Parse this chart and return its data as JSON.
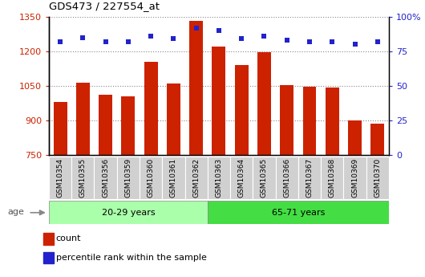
{
  "title": "GDS473 / 227554_at",
  "samples": [
    "GSM10354",
    "GSM10355",
    "GSM10356",
    "GSM10359",
    "GSM10360",
    "GSM10361",
    "GSM10362",
    "GSM10363",
    "GSM10364",
    "GSM10365",
    "GSM10366",
    "GSM10367",
    "GSM10368",
    "GSM10369",
    "GSM10370"
  ],
  "counts": [
    980,
    1065,
    1010,
    1005,
    1155,
    1060,
    1330,
    1220,
    1140,
    1195,
    1053,
    1045,
    1043,
    900,
    885
  ],
  "percentile_ranks": [
    82,
    85,
    82,
    82,
    86,
    84,
    92,
    90,
    84,
    86,
    83,
    82,
    82,
    80,
    82
  ],
  "group1_label": "20-29 years",
  "group2_label": "65-71 years",
  "group1_count": 7,
  "group2_count": 8,
  "ylim_left": [
    750,
    1350
  ],
  "ylim_right": [
    0,
    100
  ],
  "yticks_left": [
    750,
    900,
    1050,
    1200,
    1350
  ],
  "yticks_right": [
    0,
    25,
    50,
    75,
    100
  ],
  "bar_color": "#cc2200",
  "dot_color": "#2222cc",
  "group1_bg": "#aaffaa",
  "group2_bg": "#44dd44",
  "tick_bg": "#d0d0d0",
  "legend_count_label": "count",
  "legend_pct_label": "percentile rank within the sample",
  "age_label": "age"
}
